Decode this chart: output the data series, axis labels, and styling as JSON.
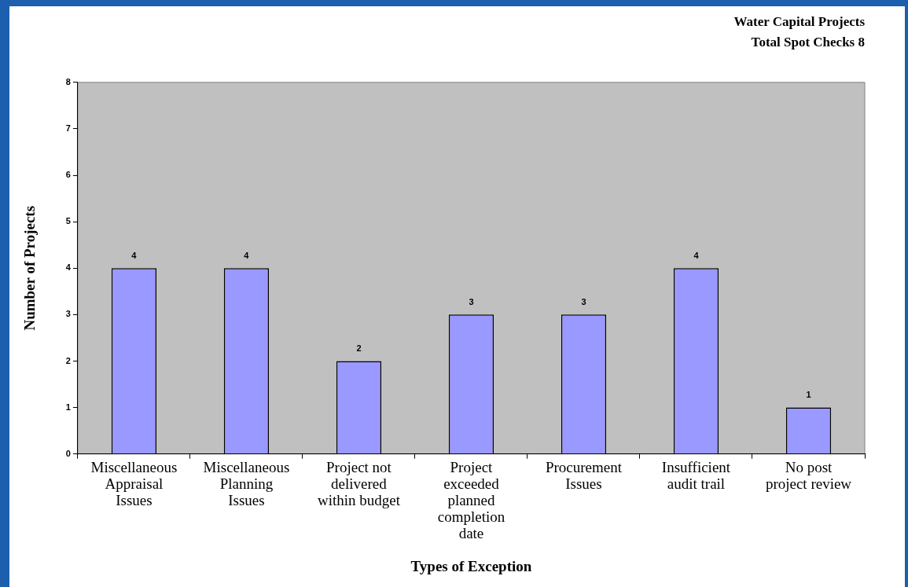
{
  "chart_data": {
    "type": "bar",
    "title": "Water Capital Projects",
    "subtitle": "Total Spot Checks 8",
    "xlabel": "Types of Exception",
    "ylabel": "Number of Projects",
    "categories": [
      "Miscellaneous Appraisal Issues",
      "Miscellaneous Planning Issues",
      "Project not delivered within budget",
      "Project exceeded planned completion date",
      "Procurement Issues",
      "Insufficient audit trail",
      "No post project review"
    ],
    "values": [
      4,
      4,
      2,
      3,
      3,
      4,
      1
    ],
    "color": "#9999ff",
    "ylim": [
      0,
      8
    ],
    "yticks": [
      0,
      1,
      2,
      3,
      4,
      5,
      6,
      7,
      8
    ],
    "grid": false,
    "legend": false,
    "data_labels": true
  }
}
